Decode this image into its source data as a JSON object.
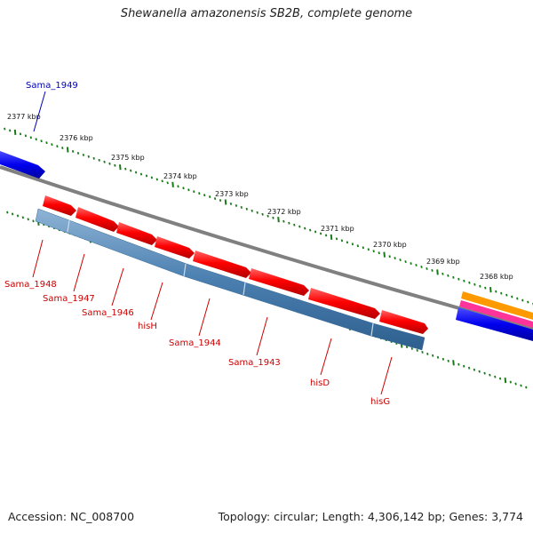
{
  "title": "Shewanella amazonensis SB2B, complete genome",
  "accession": "Accession: NC_008700",
  "topology": "Topology: circular; Length: 4,306,142 bp; Genes: 3,774",
  "colors": {
    "backbone": "#808080",
    "tick": "#1a7a1a",
    "forward_gene": "#ff0000",
    "reverse_gene": "#4a7fb0",
    "other_strand_gene": "#0000ee",
    "gene_label": "#cc0000",
    "gene_label_blue": "#0000bb",
    "orange_track": "#ff9900",
    "pink_track": "#ff3399"
  },
  "kbp_labels": [
    "2377 kbp",
    "2376 kbp",
    "2375 kbp",
    "2374 kbp",
    "2373 kbp",
    "2372 kbp",
    "2371 kbp",
    "2370 kbp",
    "2369 kbp",
    "2368 kbp"
  ],
  "gene_labels": [
    "Sama_1949",
    "Sama_1948",
    "Sama_1947",
    "Sama_1946",
    "hisH",
    "Sama_1944",
    "Sama_1943",
    "hisD",
    "hisG"
  ]
}
